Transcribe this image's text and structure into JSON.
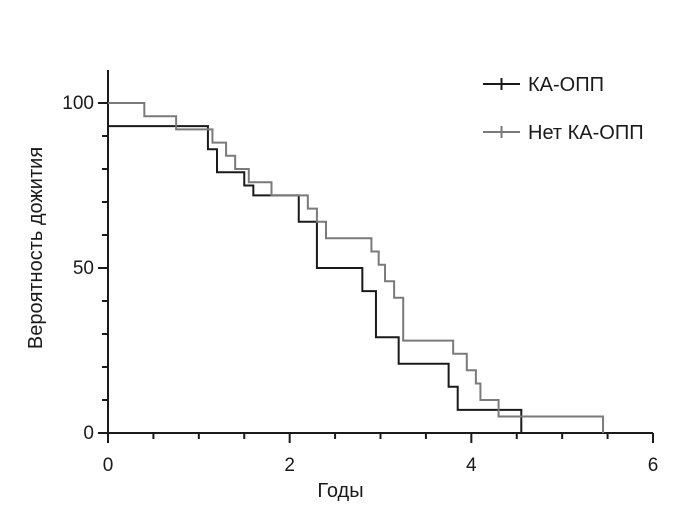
{
  "chart_data": {
    "type": "line",
    "step": true,
    "xlabel": "Годы",
    "ylabel": "Вероятность дожития",
    "xlim": [
      0,
      6
    ],
    "ylim": [
      0,
      100
    ],
    "xticks": [
      0,
      2,
      4,
      6
    ],
    "yticks": [
      0,
      50,
      100
    ],
    "grid": false,
    "legend_position": "top-right",
    "series": [
      {
        "name": "КА-ОПП",
        "color": "#1a1a1a",
        "x": [
          0,
          1.1,
          1.2,
          1.5,
          1.6,
          2.1,
          2.3,
          2.8,
          2.95,
          3.2,
          3.75,
          3.85,
          4.55
        ],
        "y": [
          93,
          86,
          79,
          75,
          72,
          64,
          50,
          43,
          29,
          21,
          14,
          7,
          0
        ]
      },
      {
        "name": "Нет КА-ОПП",
        "color": "#7a7a7a",
        "x": [
          0,
          0.4,
          0.75,
          1.15,
          1.3,
          1.4,
          1.55,
          1.8,
          2.2,
          2.3,
          2.4,
          2.9,
          2.98,
          3.05,
          3.15,
          3.25,
          3.8,
          3.95,
          4.05,
          4.1,
          4.3,
          5.45
        ],
        "y": [
          100,
          96,
          92,
          88,
          84,
          80,
          76,
          72,
          68,
          64,
          59,
          55,
          51,
          46,
          41,
          28,
          24,
          19,
          15,
          10,
          5,
          0
        ]
      }
    ]
  }
}
